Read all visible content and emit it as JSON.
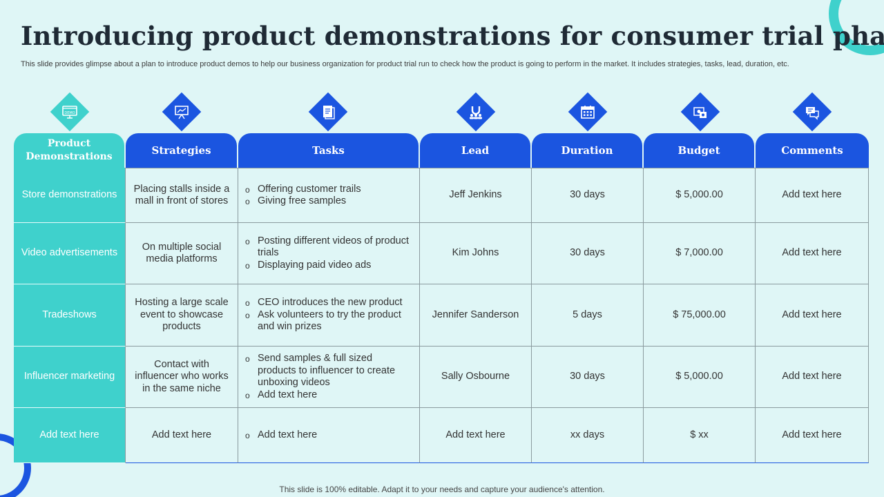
{
  "title": "Introducing product demonstrations for consumer trial phase",
  "subtitle": "This slide provides glimpse about a plan to introduce product demos to help our business organization for product trial run to check how the product is going to perform in the market. It includes strategies, tasks, lead, duration, etc.",
  "icons": [
    "demo-screen-icon",
    "presentation-board-icon",
    "task-document-icon",
    "magnet-team-icon",
    "calendar-icon",
    "budget-money-icon",
    "comments-icon"
  ],
  "colors": {
    "accent_teal": "#3fd1cc",
    "accent_blue": "#1b55e0",
    "background": "#dff6f6"
  },
  "headers": [
    "Product Demonstrations",
    "Strategies",
    "Tasks",
    "Lead",
    "Duration",
    "Budget",
    "Comments"
  ],
  "rows": [
    {
      "demo": "Store demonstrations",
      "strategy": "Placing stalls inside a mall in front of stores",
      "tasks": [
        "Offering customer trails",
        "Giving free samples"
      ],
      "lead": "Jeff Jenkins",
      "duration": "30 days",
      "budget": "$ 5,000.00",
      "comments": "Add text here"
    },
    {
      "demo": "Video advertisements",
      "strategy": "On multiple social media platforms",
      "tasks": [
        "Posting different videos of product trials",
        "Displaying paid video ads"
      ],
      "lead": "Kim Johns",
      "duration": "30 days",
      "budget": "$ 7,000.00",
      "comments": "Add text here"
    },
    {
      "demo": "Tradeshows",
      "strategy": "Hosting a large scale event to showcase products",
      "tasks": [
        "CEO introduces the new product",
        "Ask volunteers to try the product and win prizes"
      ],
      "lead": "Jennifer Sanderson",
      "duration": "5 days",
      "budget": "$ 75,000.00",
      "comments": "Add text here"
    },
    {
      "demo": "Influencer marketing",
      "strategy": "Contact with influencer who works in the same niche",
      "tasks": [
        "Send samples & full sized products to influencer to create unboxing videos",
        "Add text here"
      ],
      "lead": "Sally Osbourne",
      "duration": "30 days",
      "budget": "$ 5,000.00",
      "comments": "Add text here"
    },
    {
      "demo": "Add text here",
      "strategy": "Add text here",
      "tasks": [
        "Add text here"
      ],
      "lead": "Add text here",
      "duration": "xx days",
      "budget": "$ xx",
      "comments": "Add text here"
    }
  ],
  "footer": "This slide is 100% editable. Adapt it to your needs and capture your audience's attention."
}
